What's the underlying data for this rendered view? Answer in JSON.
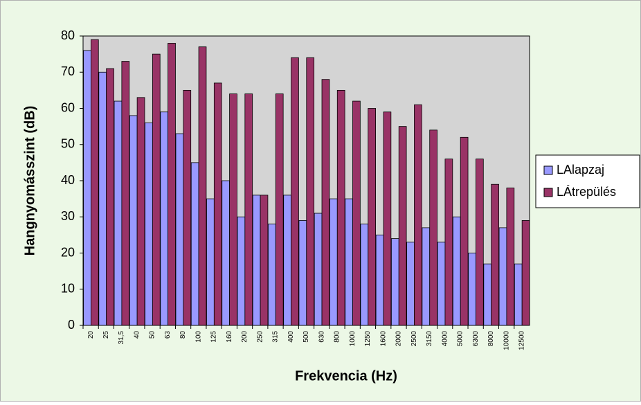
{
  "chart_data": {
    "type": "bar",
    "x_label": "Frekvencia (Hz)",
    "y_label": "Hangnyomásszint (dB)",
    "categories": [
      "20",
      "25",
      "31,5",
      "40",
      "50",
      "63",
      "80",
      "100",
      "125",
      "160",
      "200",
      "250",
      "315",
      "400",
      "500",
      "630",
      "800",
      "1000",
      "1250",
      "1600",
      "2000",
      "2500",
      "3150",
      "4000",
      "5000",
      "6300",
      "8000",
      "10000",
      "12500"
    ],
    "series": [
      {
        "name": "LAlapzaj",
        "color": "#9999ff",
        "values": [
          76,
          70,
          62,
          58,
          56,
          59,
          53,
          45,
          35,
          40,
          30,
          36,
          28,
          36,
          29,
          31,
          35,
          35,
          28,
          25,
          24,
          23,
          27,
          23,
          30,
          20,
          17,
          27,
          17
        ]
      },
      {
        "name": "LÁtrepülés",
        "color": "#993366",
        "values": [
          79,
          71,
          73,
          63,
          75,
          78,
          65,
          77,
          67,
          64,
          64,
          36,
          64,
          74,
          74,
          68,
          65,
          62,
          60,
          59,
          55,
          61,
          54,
          46,
          52,
          46,
          39,
          38,
          29
        ]
      }
    ],
    "ylim": [
      0,
      80
    ],
    "yticks": [
      0,
      10,
      20,
      30,
      40,
      50,
      60,
      70,
      80
    ],
    "grid": false,
    "legend": "right"
  }
}
